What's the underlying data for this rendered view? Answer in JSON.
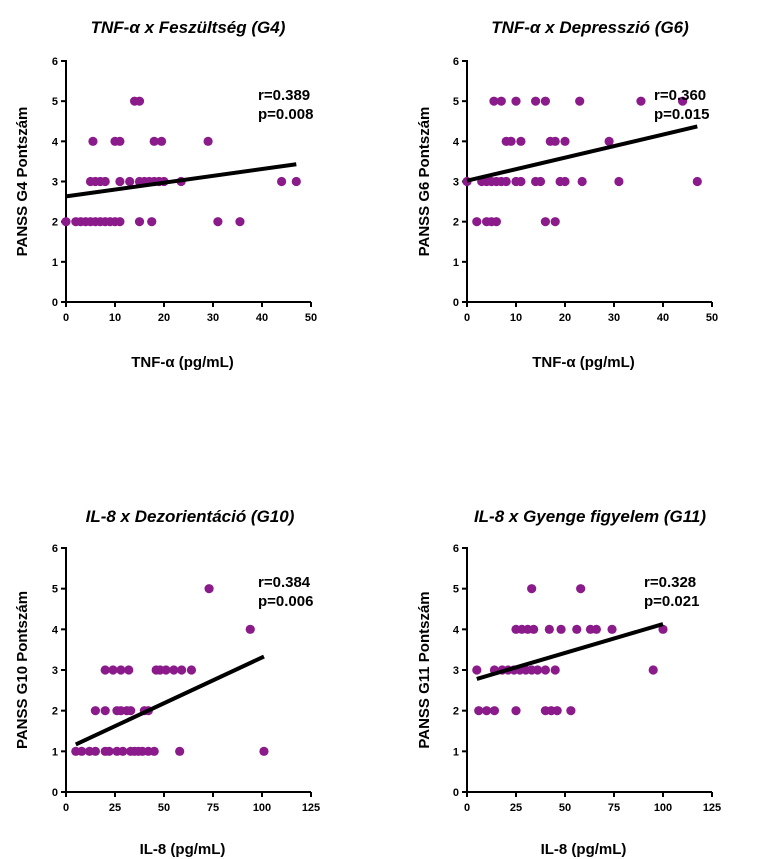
{
  "colors": {
    "points": "#8b1a8b",
    "fit_line": "#000000",
    "axes": "#000000"
  },
  "chart_data": [
    {
      "type": "scatter",
      "title": "TNF-α x Feszültség  (G4)",
      "xlabel": "TNF-α (pg/mL)",
      "ylabel": "PANSS G4 Pontszám",
      "xlim": [
        0,
        50
      ],
      "ylim": [
        0,
        6
      ],
      "xticks": [
        0,
        10,
        20,
        30,
        40,
        50
      ],
      "yticks": [
        0,
        1,
        2,
        3,
        4,
        5,
        6
      ],
      "r": "r=0.389",
      "p": "p=0.008",
      "fit": {
        "x": [
          0,
          47
        ],
        "y": [
          2.63,
          3.43
        ]
      },
      "points": [
        [
          0,
          2
        ],
        [
          2,
          2
        ],
        [
          3,
          2
        ],
        [
          4,
          2
        ],
        [
          5,
          2
        ],
        [
          6,
          2
        ],
        [
          7,
          2
        ],
        [
          8,
          2
        ],
        [
          9,
          2
        ],
        [
          10,
          2
        ],
        [
          11,
          2
        ],
        [
          15,
          2
        ],
        [
          17.5,
          2
        ],
        [
          31,
          2
        ],
        [
          35.5,
          2
        ],
        [
          5,
          3
        ],
        [
          6,
          3
        ],
        [
          7,
          3
        ],
        [
          8,
          3
        ],
        [
          11,
          3
        ],
        [
          13,
          3
        ],
        [
          15,
          3
        ],
        [
          16,
          3
        ],
        [
          17,
          3
        ],
        [
          18,
          3
        ],
        [
          19,
          3
        ],
        [
          20,
          3
        ],
        [
          23.5,
          3
        ],
        [
          44,
          3
        ],
        [
          47,
          3
        ],
        [
          5.5,
          4
        ],
        [
          10,
          4
        ],
        [
          11,
          4
        ],
        [
          18,
          4
        ],
        [
          19.5,
          4
        ],
        [
          29,
          4
        ],
        [
          14,
          5
        ],
        [
          15,
          5
        ]
      ]
    },
    {
      "type": "scatter",
      "title": "TNF-α x Depresszió  (G6)",
      "xlabel": "TNF-α (pg/mL)",
      "ylabel": "PANSS G6 Pontszám",
      "xlim": [
        0,
        50
      ],
      "ylim": [
        0,
        6
      ],
      "xticks": [
        0,
        10,
        20,
        30,
        40,
        50
      ],
      "yticks": [
        0,
        1,
        2,
        3,
        4,
        5,
        6
      ],
      "r": "r=0.360",
      "p": "p=0.015",
      "fit": {
        "x": [
          0,
          47
        ],
        "y": [
          3.02,
          4.37
        ]
      },
      "points": [
        [
          2,
          2
        ],
        [
          4,
          2
        ],
        [
          5,
          2
        ],
        [
          6,
          2
        ],
        [
          16,
          2
        ],
        [
          18,
          2
        ],
        [
          0,
          3
        ],
        [
          3,
          3
        ],
        [
          4,
          3
        ],
        [
          5,
          3
        ],
        [
          6,
          3
        ],
        [
          7,
          3
        ],
        [
          8,
          3
        ],
        [
          10,
          3
        ],
        [
          11,
          3
        ],
        [
          14,
          3
        ],
        [
          15,
          3
        ],
        [
          19,
          3
        ],
        [
          20,
          3
        ],
        [
          23.5,
          3
        ],
        [
          31,
          3
        ],
        [
          47,
          3
        ],
        [
          8,
          4
        ],
        [
          9,
          4
        ],
        [
          11,
          4
        ],
        [
          17,
          4
        ],
        [
          18,
          4
        ],
        [
          20,
          4
        ],
        [
          29,
          4
        ],
        [
          5.5,
          5
        ],
        [
          7,
          5
        ],
        [
          10,
          5
        ],
        [
          14,
          5
        ],
        [
          16,
          5
        ],
        [
          23,
          5
        ],
        [
          35.5,
          5
        ],
        [
          44,
          5
        ]
      ]
    },
    {
      "type": "scatter",
      "title": "IL-8 x Dezorientáció (G10)",
      "xlabel": "IL-8 (pg/mL)",
      "ylabel": "PANSS G10 Pontszám",
      "xlim": [
        0,
        125
      ],
      "ylim": [
        0,
        6
      ],
      "xticks": [
        0,
        25,
        50,
        75,
        100,
        125
      ],
      "yticks": [
        0,
        1,
        2,
        3,
        4,
        5,
        6
      ],
      "r": "r=0.384",
      "p": "p=0.006",
      "fit": {
        "x": [
          5,
          101
        ],
        "y": [
          1.17,
          3.33
        ]
      },
      "points": [
        [
          5,
          1
        ],
        [
          8,
          1
        ],
        [
          12,
          1
        ],
        [
          15,
          1
        ],
        [
          20,
          1
        ],
        [
          22,
          1
        ],
        [
          26,
          1
        ],
        [
          29,
          1
        ],
        [
          33,
          1
        ],
        [
          35,
          1
        ],
        [
          37,
          1
        ],
        [
          39,
          1
        ],
        [
          42,
          1
        ],
        [
          45,
          1
        ],
        [
          58,
          1
        ],
        [
          101,
          1
        ],
        [
          15,
          2
        ],
        [
          20,
          2
        ],
        [
          26,
          2
        ],
        [
          28,
          2
        ],
        [
          31,
          2
        ],
        [
          33,
          2
        ],
        [
          40,
          2
        ],
        [
          42,
          2
        ],
        [
          20,
          3
        ],
        [
          24,
          3
        ],
        [
          28,
          3
        ],
        [
          32,
          3
        ],
        [
          46,
          3
        ],
        [
          48,
          3
        ],
        [
          51,
          3
        ],
        [
          55,
          3
        ],
        [
          59,
          3
        ],
        [
          64,
          3
        ],
        [
          94,
          4
        ],
        [
          73,
          5
        ]
      ]
    },
    {
      "type": "scatter",
      "title": "IL-8 x Gyenge figyelem (G11)",
      "xlabel": "IL-8 (pg/mL)",
      "ylabel": "PANSS G11 Pontszám",
      "xlim": [
        0,
        125
      ],
      "ylim": [
        0,
        6
      ],
      "xticks": [
        0,
        25,
        50,
        75,
        100,
        125
      ],
      "yticks": [
        0,
        1,
        2,
        3,
        4,
        5,
        6
      ],
      "r": "r=0.328",
      "p": "p=0.021",
      "fit": {
        "x": [
          5,
          100
        ],
        "y": [
          2.78,
          4.13
        ]
      },
      "points": [
        [
          6,
          2
        ],
        [
          10,
          2
        ],
        [
          14,
          2
        ],
        [
          25,
          2
        ],
        [
          40,
          2
        ],
        [
          43,
          2
        ],
        [
          46,
          2
        ],
        [
          53,
          2
        ],
        [
          5,
          3
        ],
        [
          14,
          3
        ],
        [
          18,
          3
        ],
        [
          21,
          3
        ],
        [
          24,
          3
        ],
        [
          27,
          3
        ],
        [
          30,
          3
        ],
        [
          33,
          3
        ],
        [
          36,
          3
        ],
        [
          40,
          3
        ],
        [
          45,
          3
        ],
        [
          95,
          3
        ],
        [
          25,
          4
        ],
        [
          28,
          4
        ],
        [
          31,
          4
        ],
        [
          34,
          4
        ],
        [
          42,
          4
        ],
        [
          48,
          4
        ],
        [
          56,
          4
        ],
        [
          63,
          4
        ],
        [
          66,
          4
        ],
        [
          74,
          4
        ],
        [
          100,
          4
        ],
        [
          33,
          5
        ],
        [
          58,
          5
        ]
      ]
    }
  ]
}
